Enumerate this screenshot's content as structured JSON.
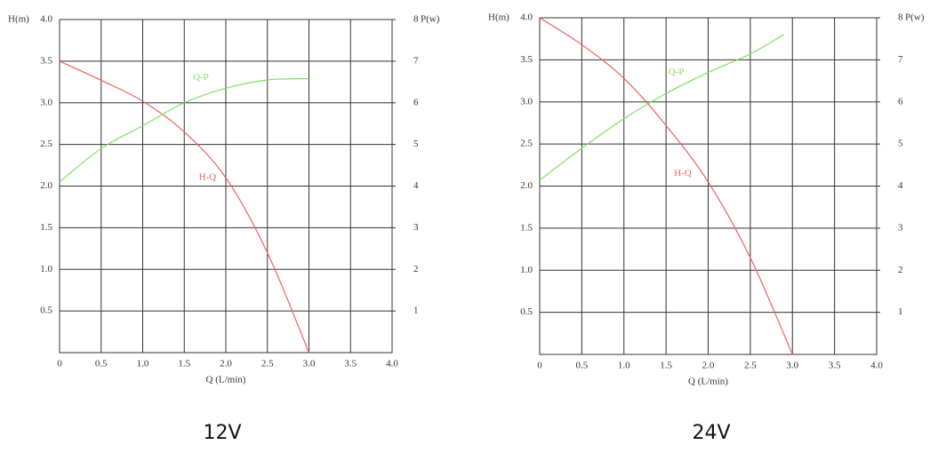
{
  "chart_data": [
    {
      "type": "line",
      "title": "12V",
      "xlabel": "Q (L/min)",
      "ylabel": "H(m)",
      "y2label": "P(w)",
      "xlim": [
        0,
        4
      ],
      "xticks": [
        0,
        0.5,
        {
          "value": 1,
          "label": "1.0"
        },
        1.5,
        {
          "value": 2,
          "label": "2.0"
        },
        2.5,
        {
          "value": 3,
          "label": "3.0"
        },
        3.5,
        {
          "value": 4,
          "label": "4.0"
        }
      ],
      "ylim": [
        0,
        4
      ],
      "yticks": [
        0.5,
        {
          "value": 1,
          "label": "1.0"
        },
        1.5,
        {
          "value": 2,
          "label": "2.0"
        },
        2.5,
        {
          "value": 3,
          "label": "3.0"
        },
        3.5,
        {
          "value": 4,
          "label": "4.0"
        }
      ],
      "y2lim": [
        0,
        8
      ],
      "y2ticks": [
        1,
        2,
        3,
        4,
        5,
        6,
        7,
        8
      ],
      "grid": true,
      "series": [
        {
          "name": "H-Q",
          "color": "#f06060",
          "x": [
            0,
            0.5,
            1,
            1.5,
            2,
            2.5,
            3
          ],
          "values": [
            3.5,
            3.27,
            3.02,
            2.65,
            2.1,
            1.2,
            0
          ]
        },
        {
          "name": "Q-P",
          "color": "#80e060",
          "axis": "y2",
          "x": [
            0,
            0.5,
            1,
            1.5,
            2,
            2.5,
            3
          ],
          "values": [
            4.1,
            4.9,
            5.45,
            6.0,
            6.35,
            6.55,
            6.58
          ]
        }
      ]
    },
    {
      "type": "line",
      "title": "24V",
      "xlabel": "Q (L/min)",
      "ylabel": "H(m)",
      "y2label": "P(w)",
      "xlim": [
        0,
        4
      ],
      "xticks": [
        0,
        0.5,
        {
          "value": 1,
          "label": "1.0"
        },
        1.5,
        {
          "value": 2,
          "label": "2.0"
        },
        2.5,
        {
          "value": 3,
          "label": "3.0"
        },
        3.5,
        {
          "value": 4,
          "label": "4.0"
        }
      ],
      "ylim": [
        0,
        4
      ],
      "yticks": [
        0.5,
        {
          "value": 1,
          "label": "1.0"
        },
        1.5,
        {
          "value": 2,
          "label": "2.0"
        },
        2.5,
        {
          "value": 3,
          "label": "3.0"
        },
        3.5,
        {
          "value": 4,
          "label": "4.0"
        }
      ],
      "y2lim": [
        0,
        8
      ],
      "y2ticks": [
        1,
        2,
        3,
        4,
        5,
        6,
        7,
        8
      ],
      "grid": true,
      "series": [
        {
          "name": "H-Q",
          "color": "#f06060",
          "x": [
            0,
            0.5,
            1,
            1.5,
            2,
            2.5,
            3
          ],
          "values": [
            4.0,
            3.68,
            3.28,
            2.72,
            2.05,
            1.15,
            0
          ]
        },
        {
          "name": "Q-P",
          "color": "#80e060",
          "axis": "y2",
          "x": [
            0,
            0.5,
            1,
            1.5,
            2,
            2.5,
            2.9
          ],
          "values": [
            4.14,
            4.9,
            5.6,
            6.2,
            6.7,
            7.14,
            7.6
          ]
        }
      ]
    }
  ]
}
